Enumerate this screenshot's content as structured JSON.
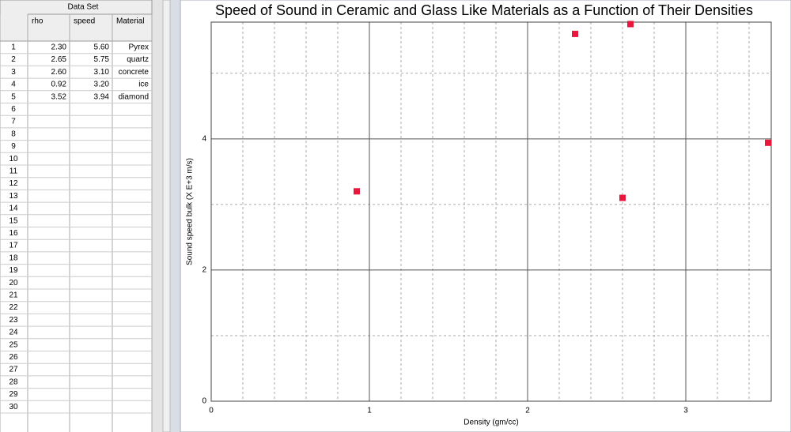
{
  "table": {
    "title": "Data Set",
    "columns": [
      "rho",
      "speed",
      "Material"
    ],
    "rows": [
      [
        "2.30",
        "5.60",
        "Pyrex"
      ],
      [
        "2.65",
        "5.75",
        "quartz"
      ],
      [
        "2.60",
        "3.10",
        "concrete"
      ],
      [
        "0.92",
        "3.20",
        "ice"
      ],
      [
        "3.52",
        "3.94",
        "diamond"
      ]
    ],
    "row_numbers": [
      1,
      2,
      3,
      4,
      5,
      6,
      7,
      8,
      9,
      10,
      11,
      12,
      13,
      14,
      15,
      16,
      17,
      18,
      19,
      20,
      21,
      22,
      23,
      24,
      25,
      26,
      27,
      28,
      29,
      30
    ]
  },
  "chart_data": {
    "type": "scatter",
    "title": "Speed of Sound in Ceramic and Glass Like Materials as a Function of Their Densities",
    "x_label": "Density (gm/cc)",
    "y_label": "Sound speed bulk (X E+3 m/s)",
    "x": [
      2.3,
      2.65,
      2.6,
      0.92,
      3.52
    ],
    "values": [
      5.6,
      5.75,
      3.1,
      3.2,
      3.94
    ],
    "color": "#e8173c",
    "xlim": [
      0,
      3.54
    ],
    "ylim": [
      0,
      5.78
    ],
    "xticks": [
      0,
      1,
      2,
      3
    ],
    "yticks": [
      0,
      2,
      4
    ],
    "xminorticks": [
      0.2,
      0.4,
      0.6,
      0.8,
      1.2,
      1.4,
      1.6,
      1.8,
      2.2,
      2.4,
      2.6,
      2.8,
      3.2,
      3.4
    ],
    "yminorticks": [
      1,
      3,
      5
    ],
    "grid": true
  }
}
